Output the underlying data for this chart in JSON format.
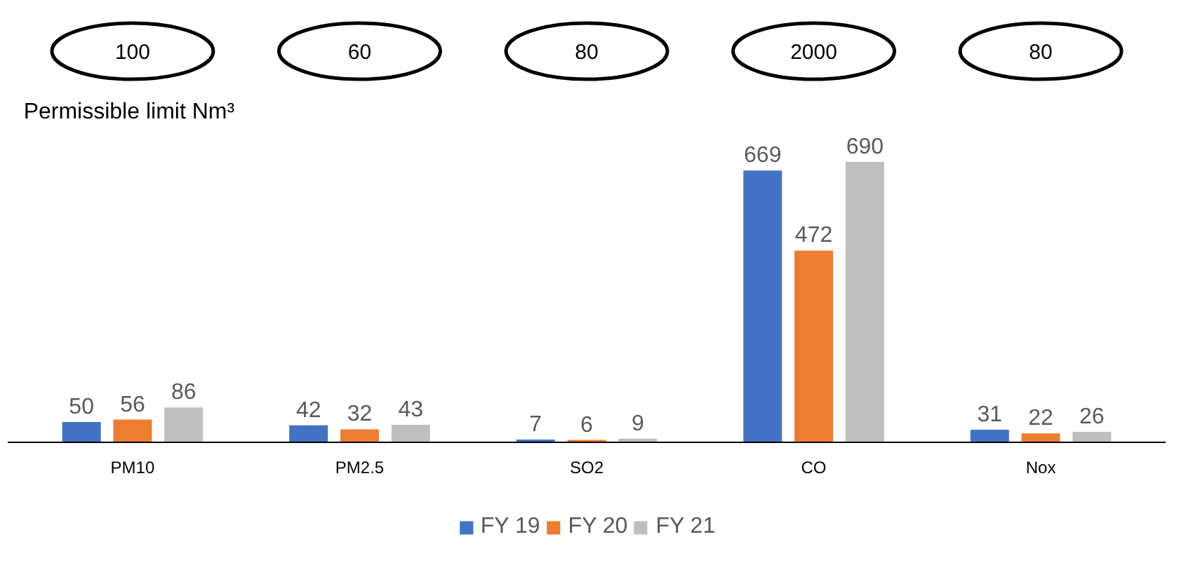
{
  "chart_data": {
    "type": "bar",
    "categories": [
      "PM10",
      "PM2.5",
      "SO2",
      "CO",
      "Nox"
    ],
    "series": [
      {
        "name": "FY 19",
        "color": "#4472c4",
        "values": [
          50,
          42,
          7,
          669,
          31
        ]
      },
      {
        "name": "FY 20",
        "color": "#ed7d31",
        "values": [
          56,
          32,
          6,
          472,
          22
        ]
      },
      {
        "name": "FY 21",
        "color": "#bfbfbf",
        "values": [
          86,
          43,
          9,
          690,
          26
        ]
      }
    ],
    "data_labels": true,
    "legend": "bottom",
    "grid": false,
    "annotations": [
      "100",
      "60",
      "80",
      "2000",
      "80",
      "Permissible limit Nm³"
    ]
  }
}
